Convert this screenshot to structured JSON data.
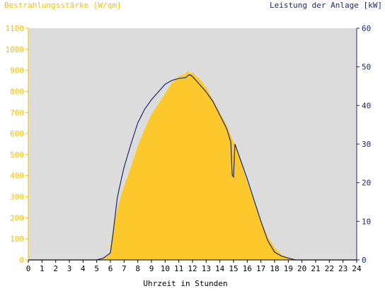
{
  "colors": {
    "left_axis": "#f9c000",
    "right_axis": "#1c2a6e",
    "plot_bg": "#dcdcdc",
    "fill": "#fdc82c",
    "line": "#1c2a6e",
    "text": "#000000"
  },
  "chart_data": {
    "type": "area",
    "left_axis_title": "Bestrahlungsstärke [W/qm]",
    "right_axis_title": "Leistung der Anlage [kW]",
    "xlabel": "Uhrzeit in Stunden",
    "xlim": [
      0,
      24
    ],
    "ylim_left": [
      0,
      1100
    ],
    "ylim_right": [
      0,
      60
    ],
    "grid": false,
    "x_ticks": [
      "0",
      "1",
      "2",
      "3",
      "4",
      "5",
      "6",
      "7",
      "8",
      "9",
      "10",
      "11",
      "12",
      "13",
      "14",
      "15",
      "16",
      "17",
      "18",
      "19",
      "20",
      "21",
      "22",
      "23",
      "24"
    ],
    "y_ticks_left": [
      "0",
      "100",
      "200",
      "300",
      "400",
      "500",
      "600",
      "700",
      "800",
      "900",
      "1000",
      "1100"
    ],
    "y_ticks_right": [
      "0",
      "10",
      "20",
      "30",
      "40",
      "50",
      "60"
    ],
    "series": [
      {
        "axis": "left",
        "style": "area",
        "x": [
          0,
          5.0,
          5.5,
          5.9,
          6.0,
          6.2,
          6.5,
          6.8,
          7.0,
          7.5,
          8.0,
          8.5,
          9.0,
          9.5,
          10.0,
          10.5,
          11.0,
          11.5,
          11.7,
          11.8,
          12.0,
          12.5,
          13.0,
          13.5,
          14.0,
          14.5,
          14.8,
          15.0,
          15.2,
          15.5,
          16.0,
          16.5,
          17.0,
          17.5,
          18.0,
          18.5,
          19.0,
          19.5,
          20.0,
          24
        ],
        "y": [
          0,
          0,
          5,
          20,
          60,
          150,
          240,
          310,
          350,
          440,
          540,
          620,
          690,
          740,
          790,
          840,
          870,
          885,
          900,
          880,
          890,
          860,
          820,
          760,
          700,
          640,
          590,
          560,
          545,
          470,
          370,
          280,
          190,
          110,
          60,
          25,
          10,
          3,
          0,
          0
        ]
      },
      {
        "axis": "right",
        "style": "line",
        "x": [
          0,
          5.0,
          5.5,
          6.0,
          6.2,
          6.5,
          6.8,
          7.0,
          7.5,
          8.0,
          8.5,
          9.0,
          9.5,
          10.0,
          10.5,
          11.0,
          11.5,
          11.7,
          11.8,
          12.0,
          12.5,
          13.0,
          13.5,
          14.0,
          14.5,
          14.8,
          14.9,
          15.0,
          15.1,
          15.2,
          15.5,
          16.0,
          16.5,
          17.0,
          17.5,
          18.0,
          18.5,
          19.0,
          19.5,
          20.0,
          24
        ],
        "y": [
          0,
          0,
          0.5,
          1.8,
          7,
          16,
          21,
          24,
          30,
          35.5,
          39,
          41.5,
          43.5,
          45.5,
          46.5,
          47,
          47.2,
          47.8,
          48,
          47.5,
          45.5,
          43.5,
          41,
          37.5,
          34,
          30.5,
          22,
          21.5,
          30,
          29,
          26,
          21,
          15.5,
          10,
          5,
          2,
          1,
          0.5,
          0,
          0,
          0
        ]
      }
    ]
  }
}
